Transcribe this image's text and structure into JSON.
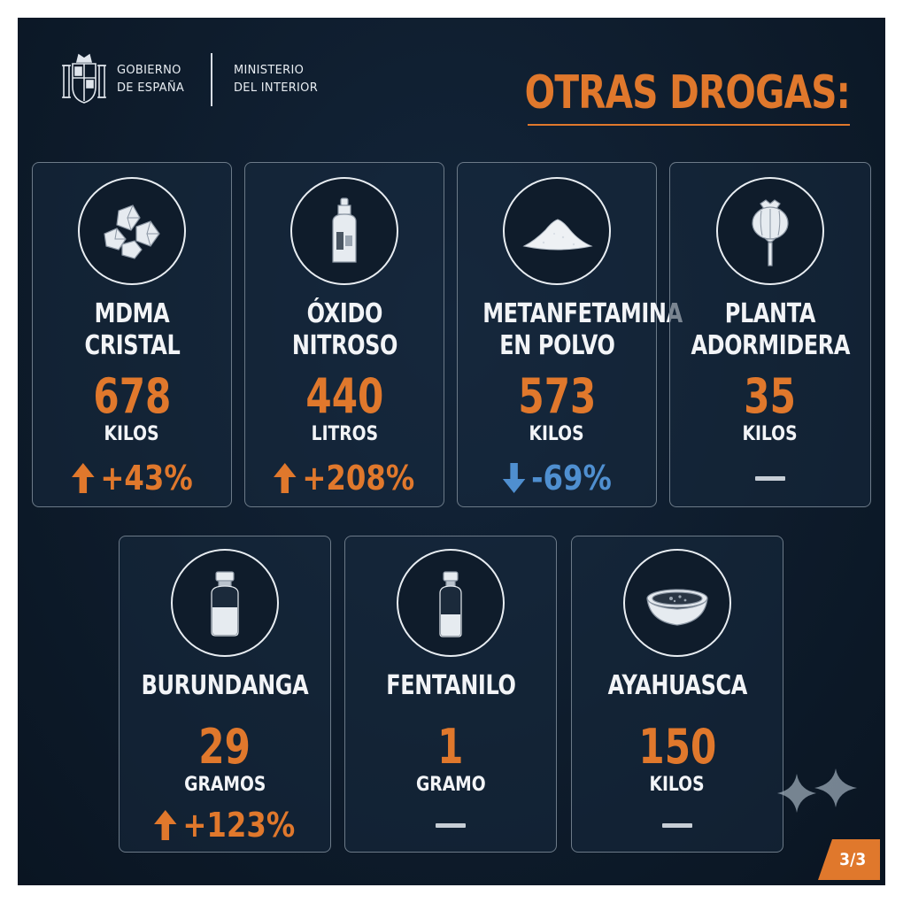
{
  "header": {
    "gov_line1": "GOBIERNO",
    "gov_line2": "DE ESPAÑA",
    "min_line1": "MINISTERIO",
    "min_line2": "DEL INTERIOR",
    "title": "OTRAS DROGAS:"
  },
  "colors": {
    "accent": "#e0782c",
    "down": "#4f8fd0",
    "background": "#0e1c2c",
    "text": "#f2f4f7"
  },
  "cards": [
    {
      "icon": "crystals-icon",
      "name_line1": "MDMA",
      "name_line2": "CRISTAL",
      "value": "678",
      "unit": "KILOS",
      "trend": "up",
      "change": "+43%"
    },
    {
      "icon": "gas-canister-icon",
      "name_line1": "ÓXIDO",
      "name_line2": "NITROSO",
      "value": "440",
      "unit": "LITROS",
      "trend": "up",
      "change": "+208%"
    },
    {
      "icon": "powder-pile-icon",
      "name_line1": "METANFETAMINA",
      "name_line2": "EN POLVO",
      "value": "573",
      "unit": "KILOS",
      "trend": "down",
      "change": "-69%"
    },
    {
      "icon": "poppy-pod-icon",
      "name_line1": "PLANTA",
      "name_line2": "ADORMIDERA",
      "value": "35",
      "unit": "KILOS",
      "trend": "none",
      "change": ""
    },
    {
      "icon": "vial-icon",
      "name_line1": "BURUNDANGA",
      "value": "29",
      "unit": "GRAMOS",
      "trend": "up",
      "change": "+123%"
    },
    {
      "icon": "small-vial-icon",
      "name_line1": "FENTANILO",
      "value": "1",
      "unit": "GRAMO",
      "trend": "none",
      "change": ""
    },
    {
      "icon": "bowl-icon",
      "name_line1": "AYAHUASCA",
      "value": "150",
      "unit": "KILOS",
      "trend": "none",
      "change": ""
    }
  ],
  "footer": {
    "page": "3/3"
  }
}
